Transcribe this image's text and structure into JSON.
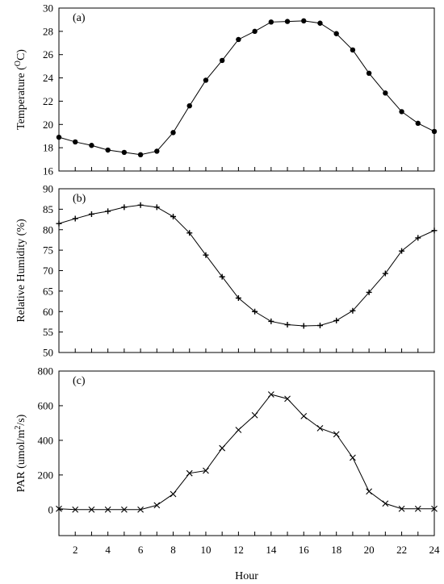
{
  "chart_data": [
    {
      "type": "line",
      "panel_label": "(a)",
      "ylabel": "Temperature (",
      "ylabel_sup": "O",
      "ylabel_tail": "C)",
      "ylim": [
        16,
        30
      ],
      "yticks": [
        16,
        18,
        20,
        22,
        24,
        26,
        28,
        30
      ],
      "xlim": [
        1,
        24
      ],
      "marker": "circle",
      "x": [
        1,
        2,
        3,
        4,
        5,
        6,
        7,
        8,
        9,
        10,
        11,
        12,
        13,
        14,
        15,
        16,
        17,
        18,
        19,
        20,
        21,
        22,
        23,
        24
      ],
      "values": [
        18.9,
        18.5,
        18.2,
        17.8,
        17.6,
        17.4,
        17.7,
        19.3,
        21.6,
        23.8,
        25.5,
        27.3,
        28.0,
        28.8,
        28.85,
        28.9,
        28.7,
        27.8,
        26.4,
        24.4,
        22.7,
        21.1,
        20.1,
        19.4
      ]
    },
    {
      "type": "line",
      "panel_label": "(b)",
      "ylabel": "Relative Humidity (%)",
      "ylim": [
        50,
        90
      ],
      "yticks": [
        50,
        55,
        60,
        65,
        70,
        75,
        80,
        85,
        90
      ],
      "xlim": [
        1,
        24
      ],
      "marker": "plus",
      "x": [
        1,
        2,
        3,
        4,
        5,
        6,
        7,
        8,
        9,
        10,
        11,
        12,
        13,
        14,
        15,
        16,
        17,
        18,
        19,
        20,
        21,
        22,
        23,
        24
      ],
      "values": [
        81.5,
        82.7,
        83.8,
        84.5,
        85.5,
        86.0,
        85.5,
        83.2,
        79.2,
        73.8,
        68.5,
        63.3,
        60.0,
        57.6,
        56.8,
        56.5,
        56.6,
        57.8,
        60.2,
        64.7,
        69.3,
        74.8,
        78.0,
        79.8
      ]
    },
    {
      "type": "line",
      "panel_label": "(c)",
      "ylabel": "PAR (umol/m",
      "ylabel_sup": "2",
      "ylabel_tail": "/s)",
      "ylim": [
        -150,
        800
      ],
      "yticks": [
        0,
        200,
        400,
        600,
        800
      ],
      "xlim": [
        1,
        24
      ],
      "xlabel": "Hour",
      "xticks": [
        2,
        4,
        6,
        8,
        10,
        12,
        14,
        16,
        18,
        20,
        22,
        24
      ],
      "marker": "x",
      "x": [
        1,
        2,
        3,
        4,
        5,
        6,
        7,
        8,
        9,
        10,
        11,
        12,
        13,
        14,
        15,
        16,
        17,
        18,
        19,
        20,
        21,
        22,
        23,
        24
      ],
      "values": [
        5,
        0,
        0,
        0,
        0,
        0,
        25,
        90,
        210,
        225,
        355,
        460,
        545,
        665,
        640,
        540,
        470,
        435,
        300,
        105,
        35,
        5,
        5,
        5
      ]
    }
  ]
}
